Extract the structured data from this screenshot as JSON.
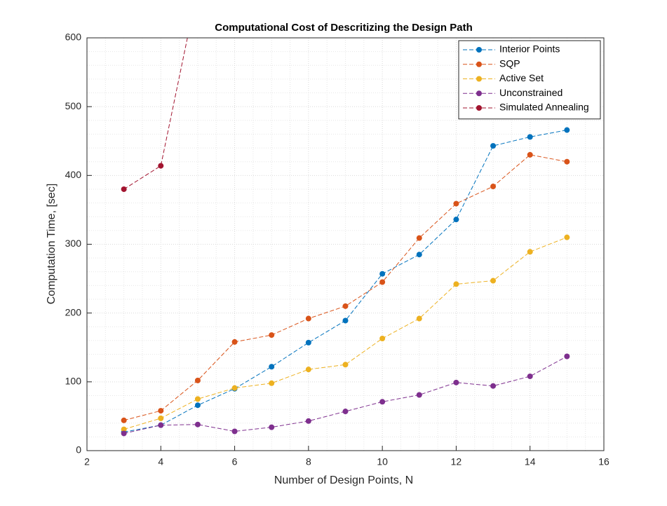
{
  "chart_data": {
    "type": "line",
    "title": "Computational Cost of Descritizing the Design Path",
    "x_label": "Number of Design Points, N",
    "y_label": "Computation Time, [sec]",
    "x": [
      3,
      4,
      5,
      6,
      7,
      8,
      9,
      10,
      11,
      12,
      13,
      14,
      15
    ],
    "series": [
      {
        "name": "Interior Points",
        "color": "#0072BD",
        "values": [
          27,
          37,
          66,
          90,
          122,
          157,
          189,
          257,
          285,
          336,
          443,
          456,
          466
        ]
      },
      {
        "name": "SQP",
        "color": "#D95319",
        "values": [
          44,
          58,
          102,
          158,
          168,
          192,
          210,
          245,
          309,
          359,
          384,
          430,
          420
        ]
      },
      {
        "name": "Active Set",
        "color": "#EDB120",
        "values": [
          31,
          47,
          75,
          91,
          98,
          118,
          125,
          163,
          192,
          242,
          247,
          289,
          310
        ]
      },
      {
        "name": "Unconstrained",
        "color": "#7E2F8E",
        "values": [
          25,
          37,
          38,
          28,
          34,
          43,
          57,
          71,
          81,
          99,
          94,
          108,
          137
        ]
      },
      {
        "name": "Simulated Annealing",
        "color": "#A2142F",
        "values": [
          380,
          414,
          672,
          null,
          null,
          null,
          null,
          null,
          null,
          null,
          null,
          null,
          null
        ]
      }
    ],
    "xlim": [
      2,
      16
    ],
    "xticks": [
      2,
      4,
      6,
      8,
      10,
      12,
      14,
      16
    ],
    "ylim": [
      0,
      600
    ],
    "yticks": [
      0,
      100,
      200,
      300,
      400,
      500,
      600
    ],
    "grid": true,
    "minor_grid": true,
    "legend": "top-right"
  }
}
